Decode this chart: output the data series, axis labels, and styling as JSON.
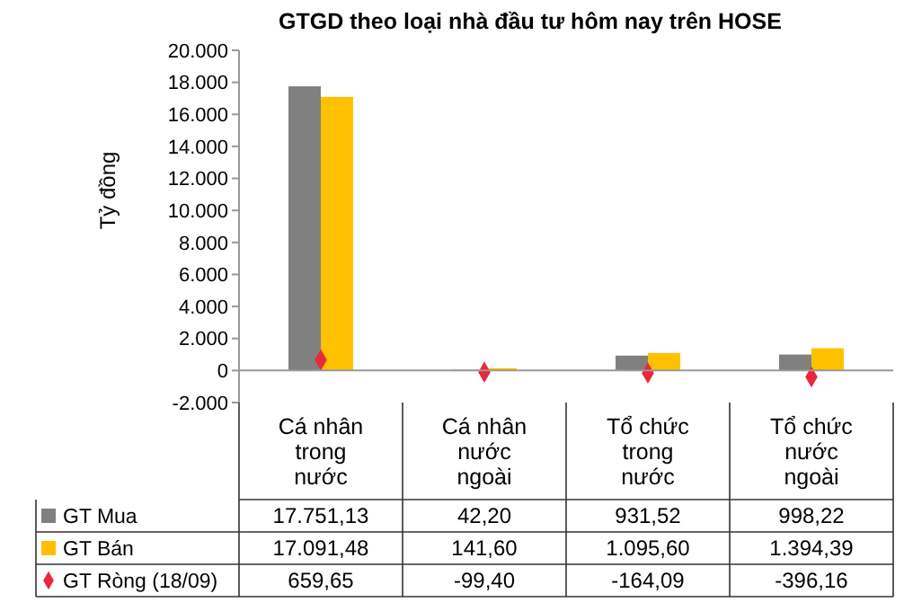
{
  "chart_data": {
    "type": "bar",
    "title": "GTGD theo loại nhà đầu tư hôm nay trên HOSE",
    "ylabel": "Tỷ đồng",
    "categories": [
      "Cá nhân trong nước",
      "Cá nhân nước ngoài",
      "Tổ chức trong nước",
      "Tổ chức nước ngoài"
    ],
    "series": [
      {
        "name": "GT Mua",
        "color": "#808080",
        "values": [
          17751.13,
          42.2,
          931.52,
          998.22
        ],
        "value_labels": [
          "17.751,13",
          "42,20",
          "931,52",
          "998,22"
        ]
      },
      {
        "name": "GT Bán",
        "color": "#ffc000",
        "values": [
          17091.48,
          141.6,
          1095.6,
          1394.39
        ],
        "value_labels": [
          "17.091,48",
          "141,60",
          "1.095,60",
          "1.394,39"
        ]
      },
      {
        "name": "GT Ròng (18/09)",
        "type": "scatter",
        "marker": "diamond",
        "color": "#e8283c",
        "values": [
          659.65,
          -99.4,
          -164.09,
          -396.16
        ],
        "value_labels": [
          "659,65",
          "-99,40",
          "-164,09",
          "-396,16"
        ]
      }
    ],
    "ylim": [
      -2000,
      20000
    ],
    "yticks": [
      {
        "value": -2000,
        "label": "-2.000"
      },
      0,
      {
        "value": 2000,
        "label": "2.000"
      },
      {
        "value": 4000,
        "label": "4.000"
      },
      {
        "value": 6000,
        "label": "6.000"
      },
      {
        "value": 8000,
        "label": "8.000"
      },
      {
        "value": 10000,
        "label": "10.000"
      },
      {
        "value": 12000,
        "label": "12.000"
      },
      {
        "value": 14000,
        "label": "14.000"
      },
      {
        "value": 16000,
        "label": "16.000"
      },
      {
        "value": 18000,
        "label": "18.000"
      },
      {
        "value": 20000,
        "label": "20.000"
      }
    ],
    "grid": false,
    "legend": "bottom"
  }
}
